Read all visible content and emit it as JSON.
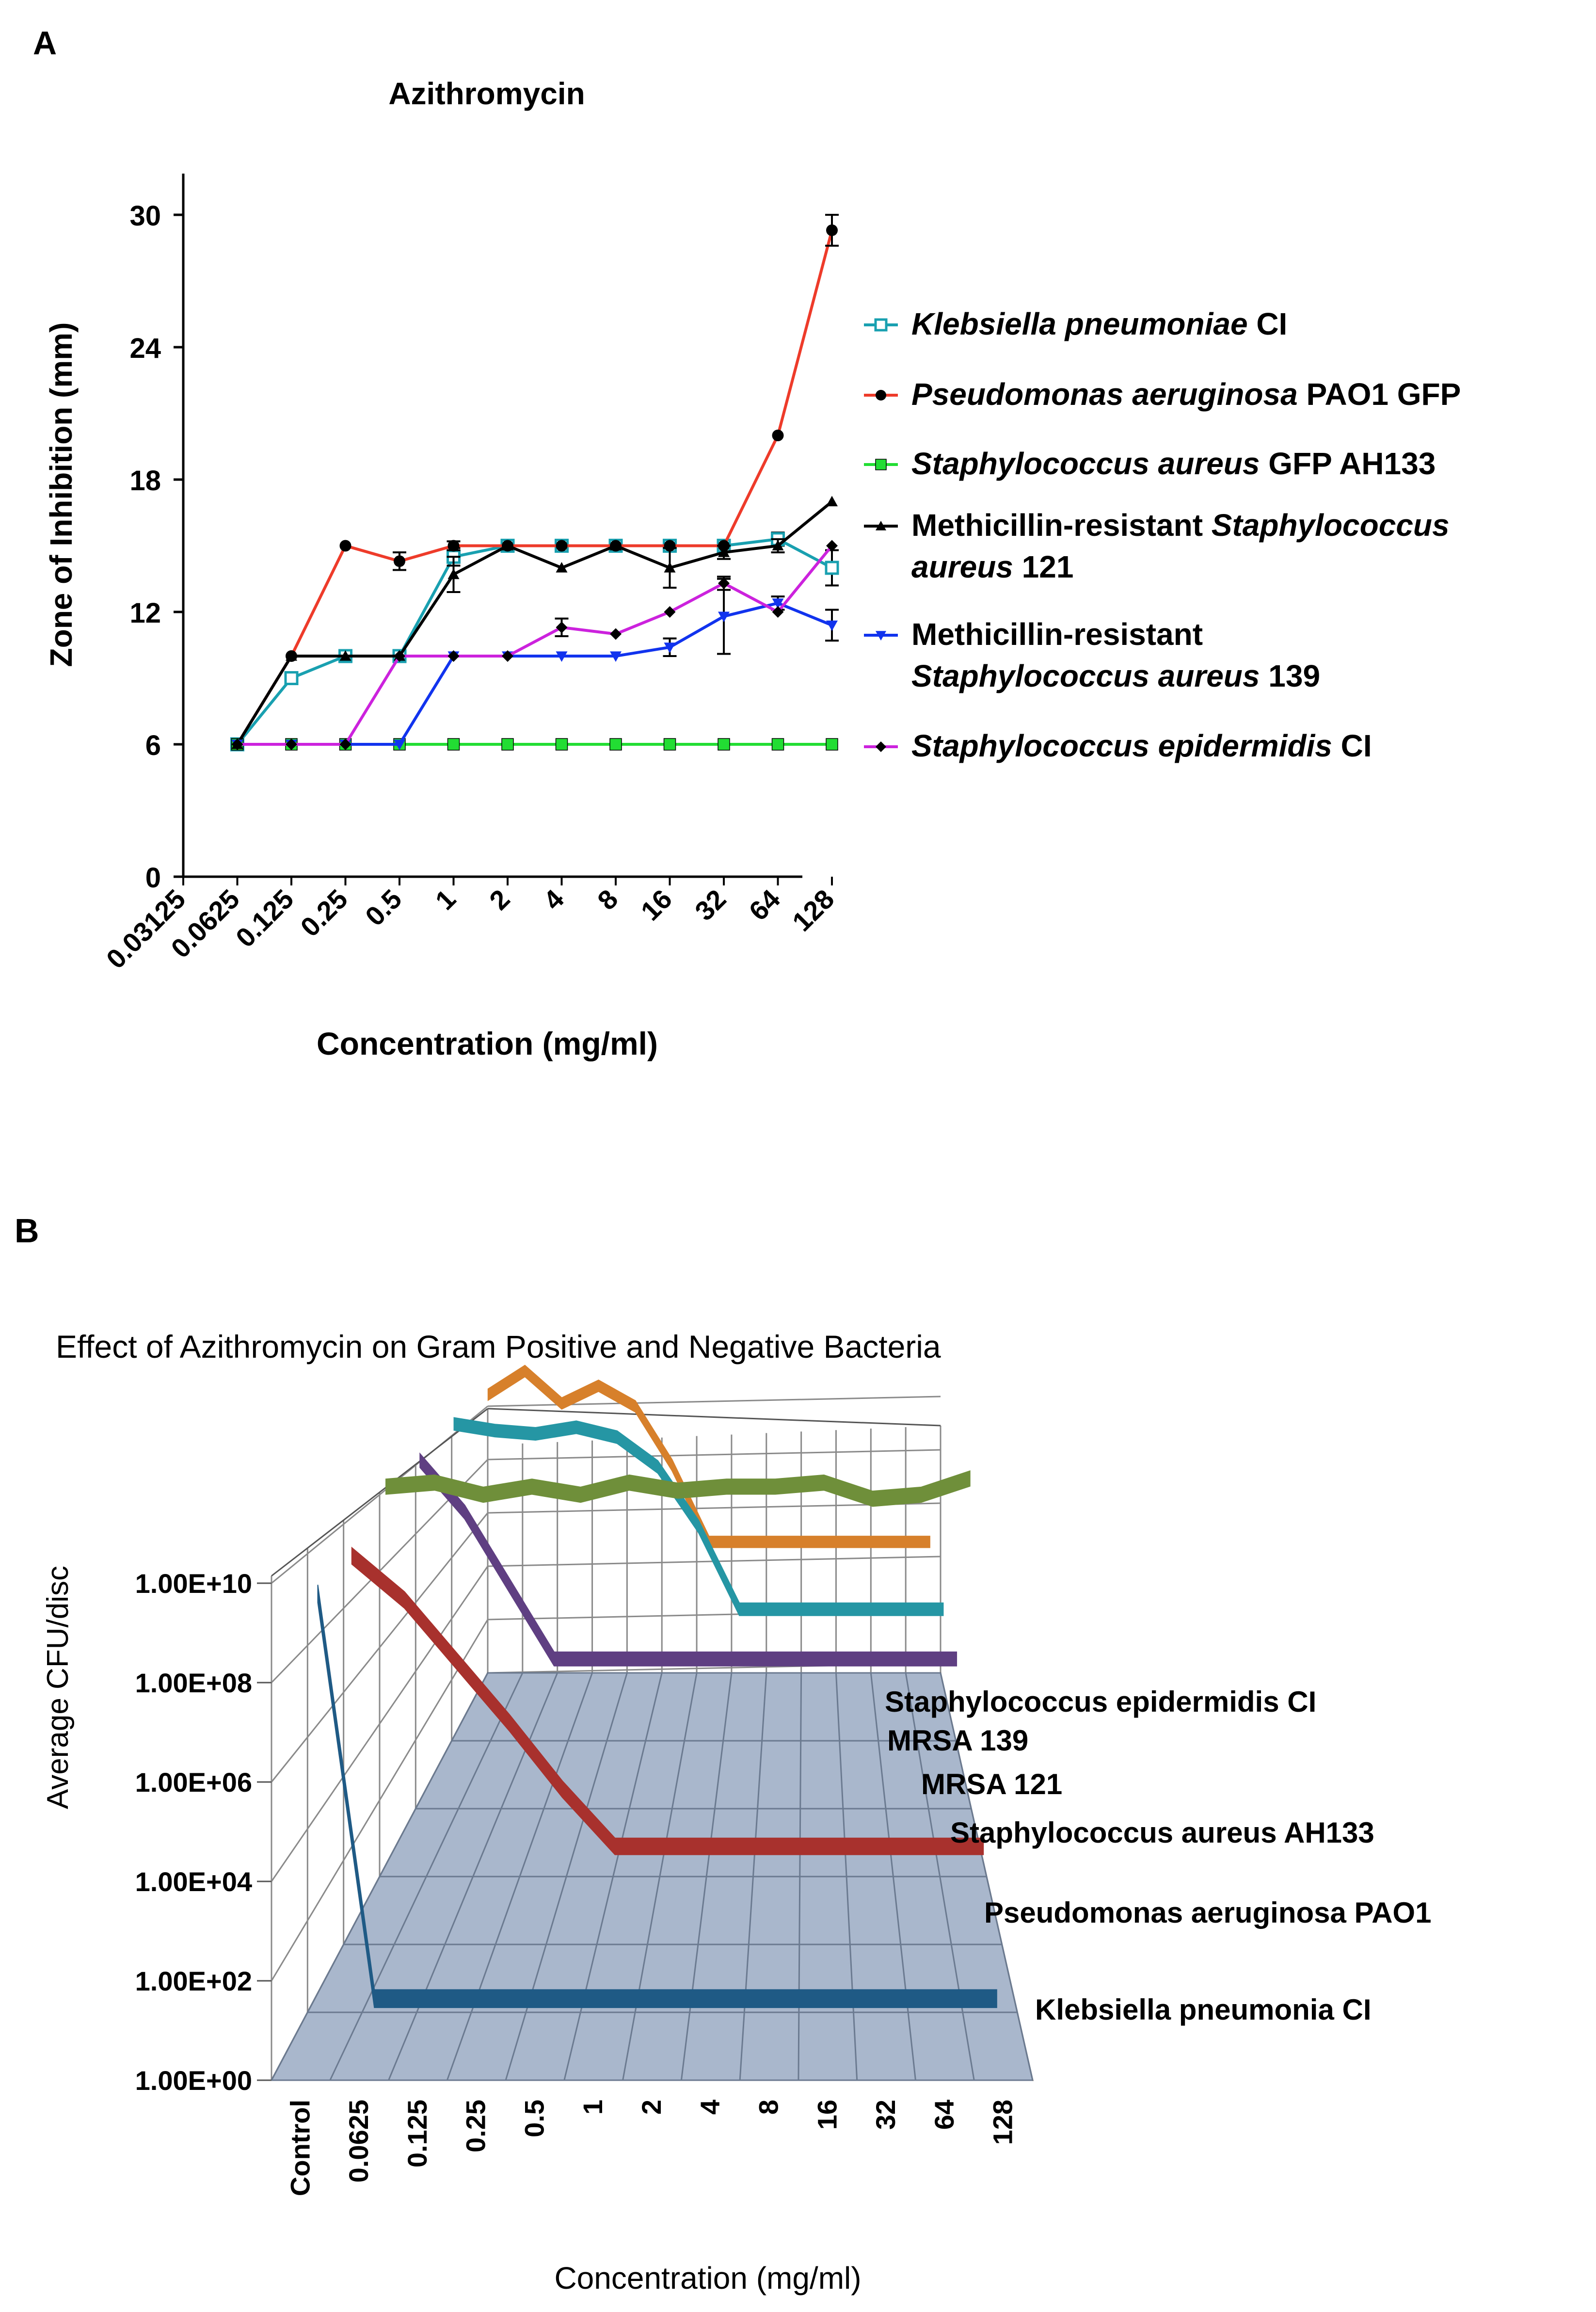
{
  "panel_labels": {
    "a": "A",
    "b": "B"
  },
  "chart_data": [
    {
      "type": "line",
      "title": "Azithromycin",
      "xlabel": "Concentration (mg/ml)",
      "ylabel": "Zone of Inhibition (mm)",
      "categories": [
        "0.03125",
        "0.0625",
        "0.125",
        "0.25",
        "0.5",
        "1",
        "2",
        "4",
        "8",
        "16",
        "32",
        "64",
        "128"
      ],
      "yticks": [
        "0",
        "6",
        "12",
        "18",
        "24",
        "30"
      ],
      "ylim": [
        0,
        32
      ],
      "grid": false,
      "legend_position": "right",
      "series": [
        {
          "name": "Klebsiella pneumoniae CI",
          "name_parts": [
            {
              "text": "Klebsiella pneumoniae",
              "italic": true
            },
            {
              "text": " CI",
              "italic": false
            }
          ],
          "color": "#19a0b0",
          "marker": "open-square",
          "values": [
            null,
            6,
            9,
            10,
            10,
            14.5,
            15,
            15,
            15,
            15,
            15,
            15.3,
            14
          ],
          "errors": [
            null,
            0,
            0.2,
            0.2,
            0.2,
            0.4,
            0.2,
            0.2,
            0.2,
            0.2,
            0.2,
            0.3,
            0.8
          ]
        },
        {
          "name": "Pseudomonas aeruginosa PAO1 GFP",
          "name_parts": [
            {
              "text": "Pseudomonas aeruginosa",
              "italic": true
            },
            {
              "text": " PAO1 GFP",
              "italic": false
            }
          ],
          "color": "#ee3b2a",
          "marker": "circle",
          "values": [
            null,
            6,
            10,
            15,
            14.3,
            15,
            15,
            15,
            15,
            15,
            15,
            20,
            29.3
          ],
          "errors": [
            null,
            0,
            0,
            0,
            0.4,
            0.2,
            0,
            0,
            0,
            0,
            0,
            0,
            0.7
          ]
        },
        {
          "name": "Staphylococcus aureus GFP AH133",
          "name_parts": [
            {
              "text": "Staphylococcus aureus",
              "italic": true
            },
            {
              "text": " GFP AH133",
              "italic": false
            }
          ],
          "color": "#22dd33",
          "marker": "filled-square",
          "values": [
            null,
            6,
            6,
            6,
            6,
            6,
            6,
            6,
            6,
            6,
            6,
            6,
            6
          ],
          "errors": [
            null,
            0,
            0,
            0,
            0,
            0,
            0,
            0,
            0,
            0,
            0,
            0,
            0
          ]
        },
        {
          "name": "Methicillin-resistant Staphylococcus aureus 121",
          "name_parts": [
            {
              "text": "Methicillin-resistant ",
              "italic": false
            },
            {
              "text": "Staphylococcus aureus",
              "italic": true
            },
            {
              "text": " 121",
              "italic": false
            }
          ],
          "color": "#000000",
          "marker": "triangle-up",
          "values": [
            null,
            6,
            10,
            10,
            10,
            13.7,
            15,
            14,
            15,
            14,
            14.7,
            15,
            17
          ],
          "errors": [
            null,
            0,
            0,
            0,
            0,
            0.8,
            0,
            0,
            0,
            0.9,
            0.3,
            0.3,
            0
          ]
        },
        {
          "name": "Methicillin-resistant Staphylococcus aureus 139",
          "name_parts": [
            {
              "text": "Methicillin-resistant",
              "italic": false
            },
            {
              "text": "Staphylococcus aureus",
              "italic": true
            },
            {
              "text": " 139",
              "italic": false
            }
          ],
          "color": "#1133ee",
          "marker": "triangle-down",
          "values": [
            null,
            6,
            6,
            6,
            6,
            10,
            10,
            10,
            10,
            10.4,
            11.8,
            12.4,
            11.4
          ],
          "errors": [
            null,
            0,
            0,
            0,
            0,
            0,
            0,
            0,
            0,
            0.4,
            1.7,
            0.3,
            0.7
          ]
        },
        {
          "name": "Staphylococcus epidermidis CI",
          "name_parts": [
            {
              "text": "Staphylococcus epidermidis",
              "italic": true
            },
            {
              "text": " CI",
              "italic": false
            }
          ],
          "color": "#cc22dd",
          "marker": "diamond",
          "values": [
            null,
            6,
            6,
            6,
            10,
            10,
            10,
            11.3,
            11,
            12,
            13.3,
            12,
            15
          ],
          "errors": [
            null,
            0,
            0,
            0,
            0,
            0,
            0,
            0.4,
            0,
            0,
            0.3,
            0,
            0
          ]
        }
      ]
    },
    {
      "type": "line",
      "subtype": "3d-line",
      "title": "Effect of Azithromycin on Gram Positive and Negative Bacteria",
      "xlabel": "Concentration (mg/ml)",
      "ylabel": "Average CFU/disc",
      "yscale": "log",
      "categories": [
        "Control",
        "0.0625",
        "0.125",
        "0.25",
        "0.5",
        "1",
        "2",
        "4",
        "8",
        "16",
        "32",
        "64",
        "128"
      ],
      "yticks": [
        "1.00E+00",
        "1.00E+02",
        "1.00E+04",
        "1.00E+06",
        "1.00E+08",
        "1.00E+10"
      ],
      "ylim_log10": [
        0,
        10
      ],
      "grid": true,
      "series": [
        {
          "name": "Klebsiella pneumonia CI",
          "color": "#1f5a85",
          "log10_values": [
            9.5,
            1,
            1,
            1,
            1,
            1,
            1,
            1,
            1,
            1,
            1,
            1,
            1
          ]
        },
        {
          "name": "Pseudomonas aeruginosa PAO1",
          "color": "#a8312d",
          "log10_values": [
            9.6,
            8.6,
            7.2,
            5.8,
            4.3,
            3,
            3,
            3,
            3,
            3,
            3,
            3,
            3
          ]
        },
        {
          "name": "Staphylococcus aureus AH133",
          "color": "#6f8f3a",
          "log10_values": [
            10.5,
            10.6,
            10.3,
            10.5,
            10.3,
            10.6,
            10.4,
            10.5,
            10.5,
            10.6,
            10.2,
            10.3,
            10.7
          ]
        },
        {
          "name": "MRSA 121",
          "color": "#5f3f82",
          "log10_values": [
            10.4,
            9,
            7,
            5,
            5,
            5,
            5,
            5,
            5,
            5,
            5,
            5,
            5
          ]
        },
        {
          "name": "MRSA 139",
          "color": "#2596a4",
          "log10_values": [
            10.6,
            10.4,
            10.3,
            10.5,
            10.2,
            9.3,
            7.5,
            5,
            5,
            5,
            5,
            5,
            5
          ]
        },
        {
          "name": "Staphylococcus epidermidis CI",
          "color": "#d7802b",
          "log10_values": [
            10.6,
            11.4,
            10.3,
            10.9,
            10.2,
            8.2,
            5.6,
            5.6,
            5.6,
            5.6,
            5.6,
            5.6,
            5.6
          ]
        }
      ]
    }
  ]
}
